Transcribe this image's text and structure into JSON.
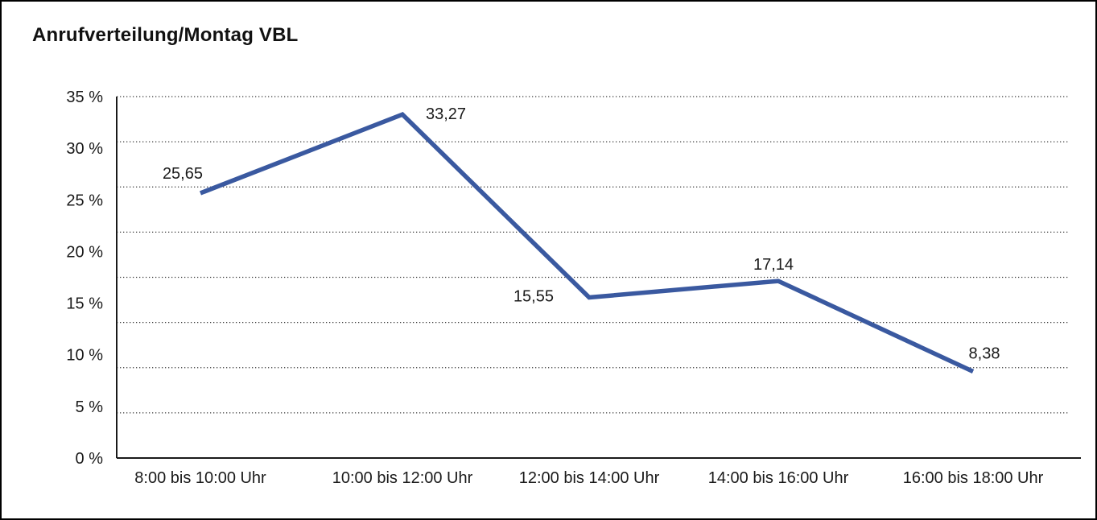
{
  "chart_data": {
    "type": "line",
    "title": "Anrufverteilung/Montag VBL",
    "categories": [
      "8:00 bis 10:00 Uhr",
      "10:00 bis 12:00 Uhr",
      "12:00 bis 14:00 Uhr",
      "14:00 bis 16:00 Uhr",
      "16:00 bis 18:00 Uhr"
    ],
    "values": [
      25.65,
      33.27,
      15.55,
      17.14,
      8.38
    ],
    "point_labels": [
      "25,65",
      "33,27",
      "15,55",
      "17,14",
      "8,38"
    ],
    "xlabel": "",
    "ylabel": "",
    "ylim": [
      0,
      35
    ],
    "ytick_interval": 5,
    "ytick_labels": [
      "35 %",
      "30 %",
      "25 %",
      "20 %",
      "15 %",
      "10 %",
      "5 %",
      "0 %"
    ],
    "grid": "horizontal-dotted",
    "legend_position": "none",
    "colors": {
      "line": "#3A59A0",
      "axis": "#1a1a1a",
      "grid_dots": "#3c3c3c",
      "text": "#1a1a1a",
      "background": "#ffffff",
      "frame_border": "#000000"
    }
  }
}
